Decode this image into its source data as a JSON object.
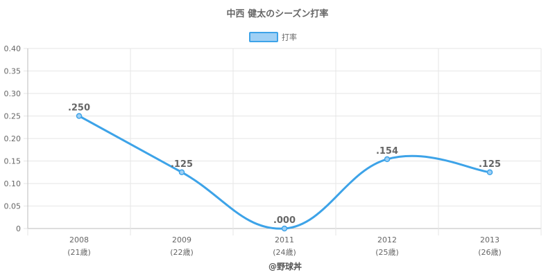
{
  "chart_data": {
    "type": "line",
    "title": "中西 健太のシーズン打率",
    "legend": {
      "label": "打率",
      "position": "top"
    },
    "categories": [
      "2008",
      "2009",
      "2011",
      "2012",
      "2013"
    ],
    "category_sublabels": [
      "(21歳)",
      "(22歳)",
      "(24歳)",
      "(25歳)",
      "(26歳)"
    ],
    "series": [
      {
        "name": "打率",
        "values": [
          0.25,
          0.125,
          0.0,
          0.154,
          0.125
        ]
      }
    ],
    "data_labels": [
      ".250",
      ".125",
      ".000",
      ".154",
      ".125"
    ],
    "ylim": [
      0,
      0.4
    ],
    "yticks": [
      "0",
      "0.05",
      "0.10",
      "0.15",
      "0.20",
      "0.25",
      "0.30",
      "0.35",
      "0.40"
    ],
    "grid": true,
    "line_color": "#3da3e8",
    "fill_color": "#9fd0f5"
  },
  "credit": "@野球丼"
}
